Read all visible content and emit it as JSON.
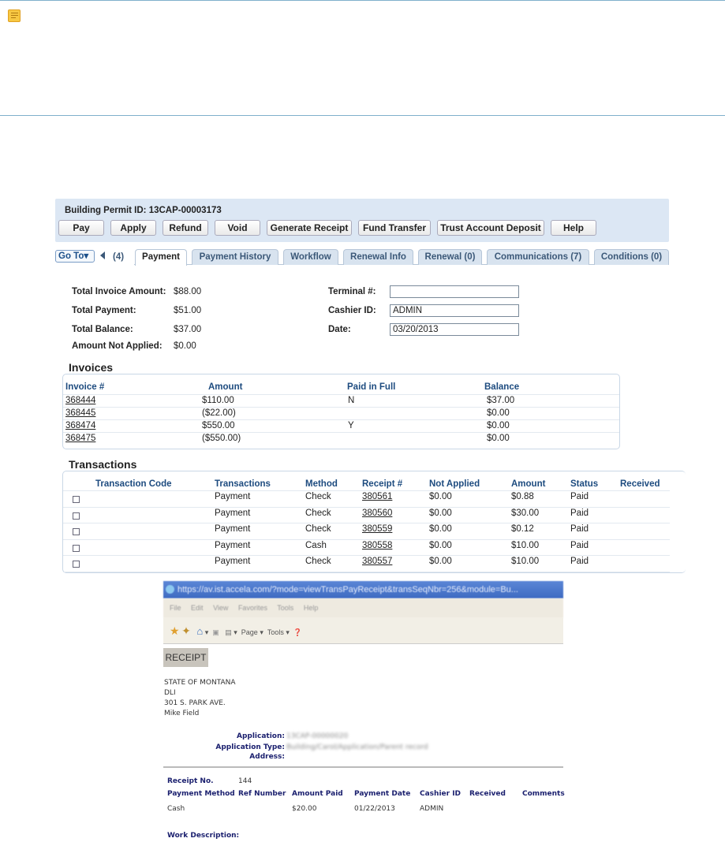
{
  "note_icon": "sticky-note-icon",
  "header": {
    "title": "Building Permit ID: 13CAP-00003173"
  },
  "buttons": [
    "Pay",
    "Apply",
    "Refund",
    "Void",
    "Generate Receipt",
    "Fund Transfer",
    "Trust Account Deposit",
    "Help"
  ],
  "nav": {
    "goto": "Go To▾",
    "prev_count": "(4)"
  },
  "tabs": [
    "Payment",
    "Payment History",
    "Workflow",
    "Renewal Info",
    "Renewal (0)",
    "Communications (7)",
    "Conditions (0)"
  ],
  "active_tab": "Payment",
  "summary": {
    "total_invoice_label": "Total Invoice Amount:",
    "total_invoice": "$88.00",
    "total_payment_label": "Total Payment:",
    "total_payment": "$51.00",
    "total_balance_label": "Total Balance:",
    "total_balance": "$37.00",
    "not_applied_label": "Amount Not Applied:",
    "not_applied": "$0.00",
    "terminal_label": "Terminal #:",
    "terminal": "",
    "cashier_label": "Cashier ID:",
    "cashier": "ADMIN",
    "date_label": "Date:",
    "date": "03/20/2013"
  },
  "invoices": {
    "title": "Invoices",
    "columns": [
      "Invoice #",
      "Amount",
      "Paid in Full",
      "Balance"
    ],
    "rows": [
      [
        "368444",
        "$110.00",
        "N",
        "$37.00"
      ],
      [
        "368445",
        "($22.00)",
        "",
        "$0.00"
      ],
      [
        "368474",
        "$550.00",
        "Y",
        "$0.00"
      ],
      [
        "368475",
        "($550.00)",
        "",
        "$0.00"
      ]
    ]
  },
  "transactions": {
    "title": "Transactions",
    "columns": [
      "Transaction Code",
      "Transactions",
      "Method",
      "Receipt #",
      "Not Applied",
      "Amount",
      "Status",
      "Received"
    ],
    "rows": [
      [
        "",
        "Payment",
        "Check",
        "380561",
        "$0.00",
        "$0.88",
        "Paid",
        ""
      ],
      [
        "",
        "Payment",
        "Check",
        "380560",
        "$0.00",
        "$30.00",
        "Paid",
        ""
      ],
      [
        "",
        "Payment",
        "Check",
        "380559",
        "$0.00",
        "$0.12",
        "Paid",
        ""
      ],
      [
        "",
        "Payment",
        "Cash",
        "380558",
        "$0.00",
        "$10.00",
        "Paid",
        ""
      ],
      [
        "",
        "Payment",
        "Check",
        "380557",
        "$0.00",
        "$10.00",
        "Paid",
        ""
      ]
    ]
  },
  "receipt_window": {
    "url": "https://av.ist.accela.com/?mode=viewTransPayReceipt&transSeqNbr=256&module=Bu...",
    "menu": [
      "File",
      "Edit",
      "View",
      "Favorites",
      "Tools",
      "Help"
    ],
    "toolbar": [
      "Page ▾",
      "Tools ▾"
    ],
    "heading": "RECEIPT",
    "address": [
      "STATE OF MONTANA",
      "DLI",
      "301 S. PARK AVE.",
      "Mike Field"
    ],
    "application_label": "Application:",
    "application": "13CAP-00000020",
    "application_type_label": "Application Type:",
    "application_type": "Building/Carol/Application/Parent record",
    "address_label": "Address:",
    "receipt_no_label": "Receipt No.",
    "receipt_no": "144",
    "columns": [
      "Payment Method",
      "Ref Number",
      "Amount Paid",
      "Payment Date",
      "Cashier ID",
      "Received",
      "Comments"
    ],
    "row": [
      "Cash",
      "",
      "$20.00",
      "01/22/2013",
      "ADMIN",
      "",
      ""
    ],
    "work_description_label": "Work Description:"
  }
}
